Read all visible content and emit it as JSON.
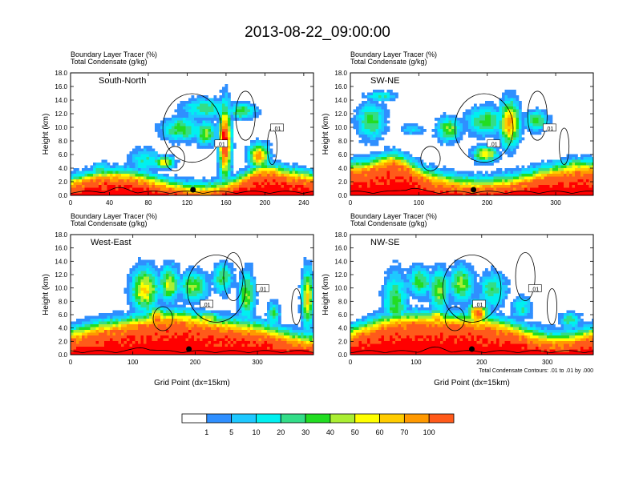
{
  "figure": {
    "title": "2013-08-22_09:00:00",
    "condensate_note": "Total Condensate Contours: .01 to .01 by .000"
  },
  "colorbar": {
    "labels": [
      "1",
      "5",
      "10",
      "20",
      "30",
      "40",
      "50",
      "60",
      "70",
      "100"
    ],
    "colors": [
      "#ffffff",
      "#2f8fff",
      "#1ec8ff",
      "#00f0f0",
      "#33dd88",
      "#22dd22",
      "#aaee33",
      "#ffff00",
      "#ffcc00",
      "#ff9900",
      "#ff5a1a",
      "#ff0000"
    ]
  },
  "panel_labels": {
    "tracer": "Boundary Layer Tracer",
    "tracer_unit": "(%)",
    "condensate": "Total Condensate",
    "condensate_unit": "(g/kg)",
    "ylabel": "Height (km)",
    "xlabel": "Grid Point (dx=15km)",
    "contour_label": ".01"
  },
  "chart_data": [
    {
      "type": "heatmap",
      "name": "South-North",
      "xlim": [
        0,
        250
      ],
      "ylim": [
        0,
        18
      ],
      "xticks": [
        "0",
        "40",
        "80",
        "120",
        "160",
        "200",
        "240"
      ],
      "yticks": [
        "0.0",
        "2.0",
        "4.0",
        "6.0",
        "8.0",
        "10.0",
        "12.0",
        "14.0",
        "16.0",
        "18.0"
      ],
      "marker_x": 126,
      "xlabel": ""
    },
    {
      "type": "heatmap",
      "name": "SW-NE",
      "xlim": [
        0,
        355
      ],
      "ylim": [
        0,
        18
      ],
      "xticks": [
        "0",
        "100",
        "200",
        "300"
      ],
      "yticks": [
        "0.0",
        "2.0",
        "4.0",
        "6.0",
        "8.0",
        "10.0",
        "12.0",
        "14.0",
        "16.0",
        "18.0"
      ],
      "marker_x": 180,
      "xlabel": ""
    },
    {
      "type": "heatmap",
      "name": "West-East",
      "xlim": [
        0,
        390
      ],
      "ylim": [
        0,
        18
      ],
      "xticks": [
        "0",
        "100",
        "200",
        "300"
      ],
      "yticks": [
        "0.0",
        "2.0",
        "4.0",
        "6.0",
        "8.0",
        "10.0",
        "12.0",
        "14.0",
        "16.0",
        "18.0"
      ],
      "marker_x": 190,
      "xlabel": "Grid Point (dx=15km)"
    },
    {
      "type": "heatmap",
      "name": "NW-SE",
      "xlim": [
        0,
        370
      ],
      "ylim": [
        0,
        18
      ],
      "xticks": [
        "0",
        "100",
        "200",
        "300"
      ],
      "yticks": [
        "0.0",
        "2.0",
        "4.0",
        "6.0",
        "8.0",
        "10.0",
        "12.0",
        "14.0",
        "16.0",
        "18.0"
      ],
      "marker_x": 185,
      "xlabel": "Grid Point (dx=15km)"
    }
  ]
}
